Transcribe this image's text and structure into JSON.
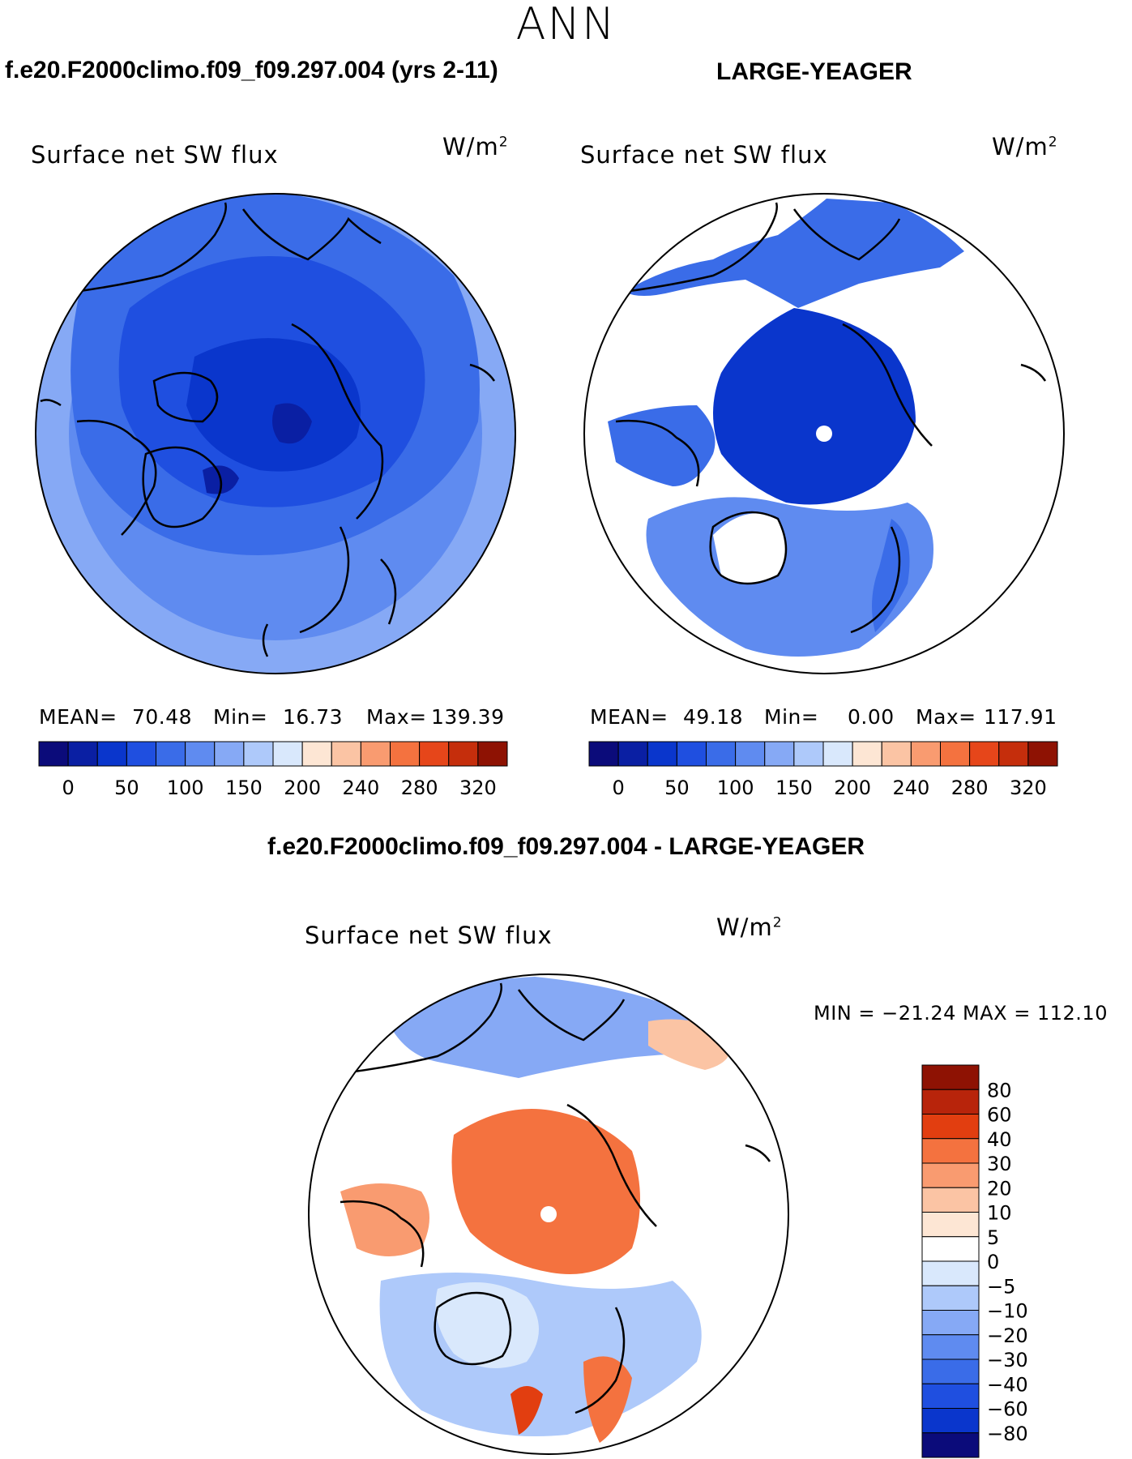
{
  "season": "ANN",
  "case1_title": "f.e20.F2000climo.f09_f09.297.004 (yrs 2-11)",
  "case2_title": "LARGE-YEAGER",
  "diff_title": "f.e20.F2000climo.f09_f09.297.004 - LARGE-YEAGER",
  "panels": {
    "p1": {
      "variable": "Surface net SW flux",
      "units": "W/m",
      "units_sup": "2",
      "mean_label": "MEAN=",
      "mean": "70.48",
      "min_label": "Min=",
      "min": "16.73",
      "max_label": "Max=",
      "max": "139.39"
    },
    "p2": {
      "variable": "Surface net SW flux",
      "units": "W/m",
      "units_sup": "2",
      "mean_label": "MEAN=",
      "mean": "49.18",
      "min_label": "Min=",
      "min": "0.00",
      "max_label": "Max=",
      "max": "117.91"
    },
    "p3": {
      "variable": "Surface net SW flux",
      "units": "W/m",
      "units_sup": "2",
      "minmax": "MIN = −21.24 MAX = 112.10"
    }
  },
  "colorbar_main": {
    "ticks": [
      "0",
      "50",
      "100",
      "150",
      "200",
      "240",
      "280",
      "320"
    ],
    "colors": [
      "#0b0b7a",
      "#0a1fa3",
      "#0a36cc",
      "#1f4fe0",
      "#3a6ce8",
      "#5f8bf0",
      "#86a9f5",
      "#aec9fa",
      "#d9e8fc",
      "#fde6d4",
      "#fbc4a4",
      "#f99b70",
      "#f4723f",
      "#e6461a",
      "#c52e0c",
      "#8e1203"
    ]
  },
  "colorbar_diff": {
    "labels": [
      "80",
      "60",
      "40",
      "30",
      "20",
      "10",
      "5",
      "0",
      "−5",
      "−10",
      "−20",
      "−30",
      "−40",
      "−60",
      "−80"
    ],
    "colors": [
      "#8e1203",
      "#b8240b",
      "#e23e10",
      "#f4723f",
      "#f99b70",
      "#fbc4a4",
      "#fde6d4",
      "#ffffff",
      "#d9e8fc",
      "#aec9fa",
      "#86a9f5",
      "#5f8bf0",
      "#3a6ce8",
      "#1f4fe0",
      "#0a36cc",
      "#0b0b7a"
    ]
  }
}
